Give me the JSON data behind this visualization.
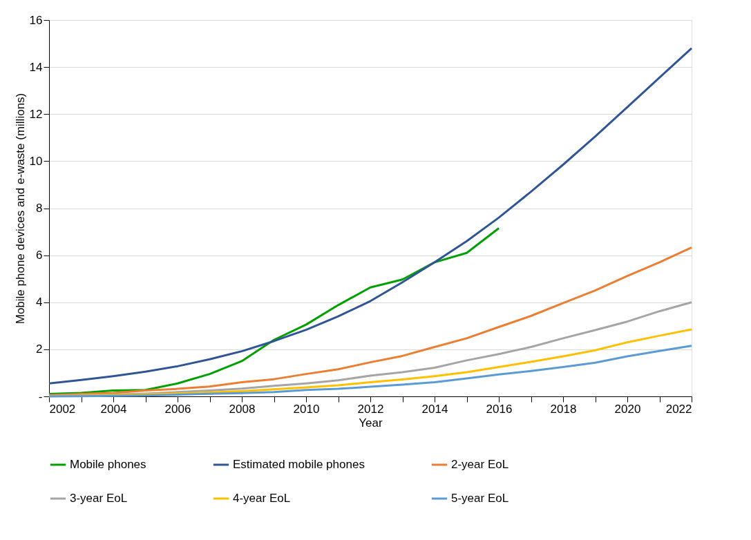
{
  "chart_data": {
    "type": "line",
    "xlabel": "Year",
    "ylabel": "Mobile phone devices and e-waste (millions)",
    "x": [
      2002,
      2003,
      2004,
      2005,
      2006,
      2007,
      2008,
      2009,
      2010,
      2011,
      2012,
      2013,
      2014,
      2015,
      2016,
      2017,
      2018,
      2019,
      2020,
      2021,
      2022
    ],
    "series": [
      {
        "name": "Mobile phones",
        "color": "#00a000",
        "values": [
          0.1,
          0.15,
          0.25,
          0.27,
          0.55,
          0.95,
          1.5,
          2.4,
          3.05,
          3.88,
          4.63,
          4.97,
          5.7,
          6.1,
          7.15,
          null,
          null,
          null,
          null,
          null,
          null
        ]
      },
      {
        "name": "Estimated mobile phones",
        "color": "#2f5597",
        "values": [
          0.55,
          0.7,
          0.86,
          1.05,
          1.28,
          1.58,
          1.92,
          2.35,
          2.83,
          3.4,
          4.05,
          4.85,
          5.7,
          6.6,
          7.6,
          8.7,
          9.85,
          11.05,
          12.3,
          13.55,
          14.8
        ]
      },
      {
        "name": "2-year EoL",
        "color": "#ed7d31",
        "values": [
          0.05,
          0.1,
          0.15,
          0.25,
          0.32,
          0.42,
          0.6,
          0.73,
          0.95,
          1.15,
          1.45,
          1.72,
          2.1,
          2.47,
          2.95,
          3.42,
          3.97,
          4.5,
          5.12,
          5.7,
          6.33
        ]
      },
      {
        "name": "3-year EoL",
        "color": "#a5a5a5",
        "values": [
          0.02,
          0.05,
          0.08,
          0.12,
          0.18,
          0.25,
          0.33,
          0.45,
          0.55,
          0.68,
          0.88,
          1.03,
          1.22,
          1.53,
          1.8,
          2.1,
          2.47,
          2.82,
          3.18,
          3.62,
          4.0
        ]
      },
      {
        "name": "4-year EoL",
        "color": "#ffc000",
        "values": [
          0.01,
          0.03,
          0.05,
          0.08,
          0.12,
          0.17,
          0.22,
          0.3,
          0.38,
          0.47,
          0.6,
          0.72,
          0.86,
          1.03,
          1.25,
          1.47,
          1.7,
          1.96,
          2.3,
          2.58,
          2.85
        ]
      },
      {
        "name": "5-year EoL",
        "color": "#5b9bd5",
        "values": [
          0.0,
          0.01,
          0.02,
          0.04,
          0.07,
          0.11,
          0.14,
          0.18,
          0.27,
          0.32,
          0.41,
          0.5,
          0.6,
          0.76,
          0.93,
          1.08,
          1.25,
          1.43,
          1.7,
          1.93,
          2.15
        ]
      }
    ],
    "xlim": [
      2002,
      2022
    ],
    "xticks": [
      2002,
      {
        "value": 2003,
        "label": null
      },
      2004,
      {
        "value": 2005,
        "label": null
      },
      2006,
      {
        "value": 2007,
        "label": null
      },
      2008,
      {
        "value": 2009,
        "label": null
      },
      2010,
      {
        "value": 2011,
        "label": null
      },
      2012,
      {
        "value": 2013,
        "label": null
      },
      2014,
      {
        "value": 2015,
        "label": null
      },
      2016,
      {
        "value": 2017,
        "label": null
      },
      2018,
      {
        "value": 2019,
        "label": null
      },
      2020,
      {
        "value": 2021,
        "label": null
      },
      2022
    ],
    "ylim": [
      0,
      16
    ],
    "yticks": [
      {
        "value": 0,
        "label": "-"
      },
      2,
      4,
      6,
      8,
      10,
      12,
      14,
      16
    ],
    "grid": "y",
    "legend": "bottom",
    "marker": "none",
    "line_style": "solid"
  }
}
